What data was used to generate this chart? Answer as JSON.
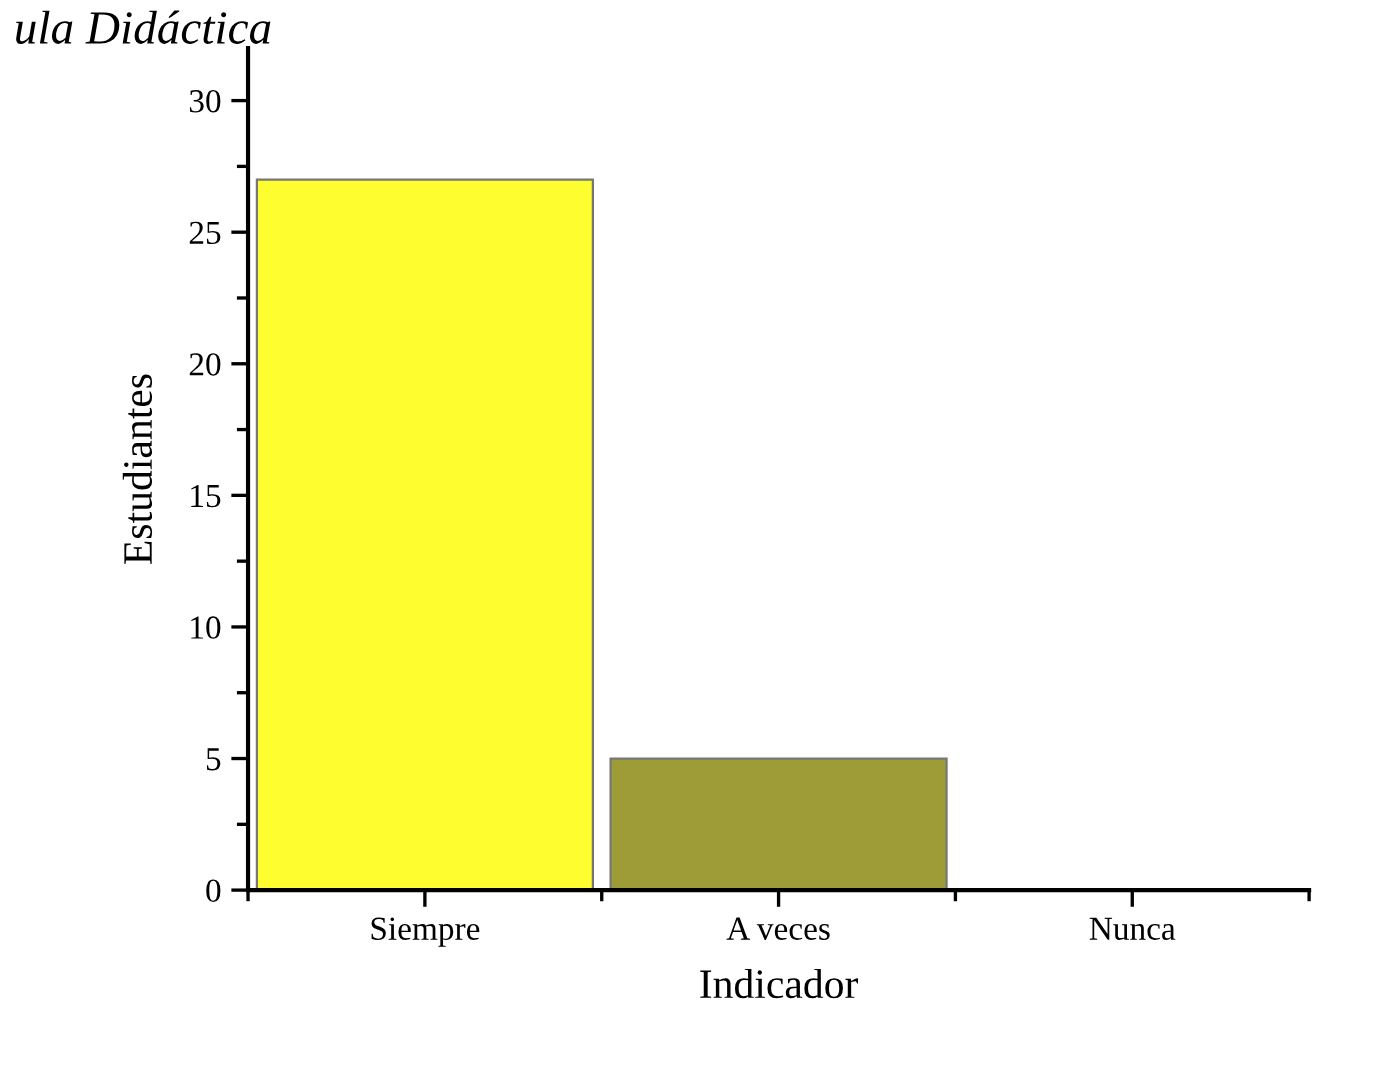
{
  "chart_data": {
    "type": "bar",
    "title": "ula Didáctica",
    "xlabel": "Indicador",
    "ylabel": "Estudiantes",
    "categories": [
      "Siempre",
      "A veces",
      "Nunca"
    ],
    "values": [
      27,
      5,
      0
    ],
    "colors": [
      "#fdfd2f",
      "#9e9c36",
      "#9e9c36"
    ],
    "ylim": [
      0,
      32
    ],
    "yticks": [
      0,
      {
        "value": 2.5,
        "label": null
      },
      5,
      {
        "value": 7.5,
        "label": null
      },
      10,
      {
        "value": 12.5,
        "label": null
      },
      15,
      {
        "value": 17.5,
        "label": null
      },
      20,
      {
        "value": 22.5,
        "label": null
      },
      25,
      {
        "value": 27.5,
        "label": null
      },
      30
    ],
    "grid": false,
    "legend": false
  }
}
